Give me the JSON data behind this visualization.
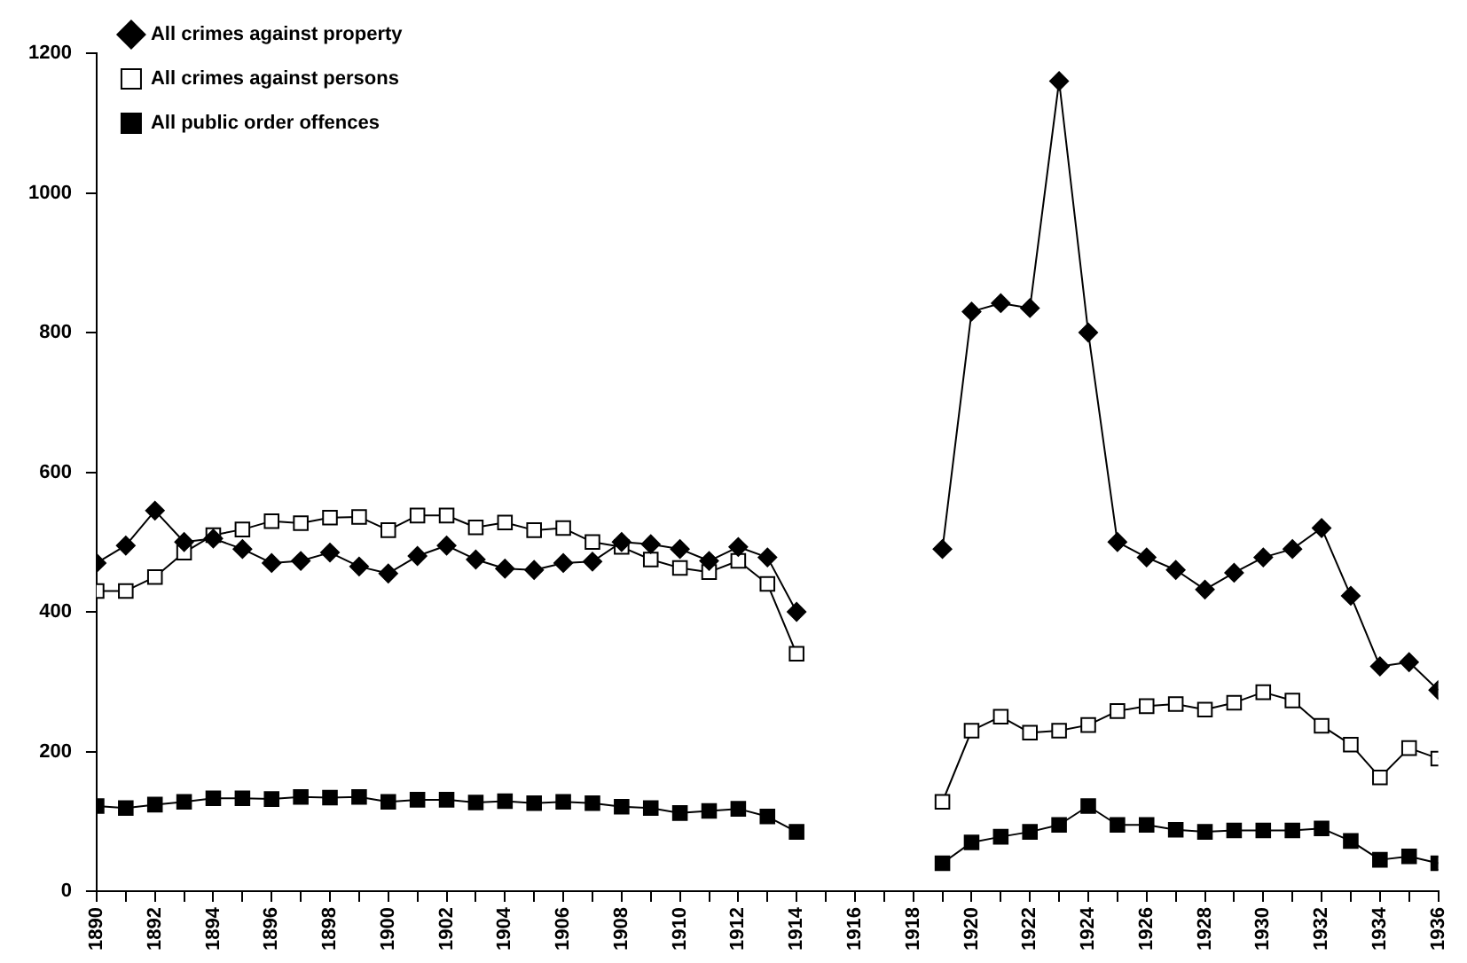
{
  "chart_data": {
    "type": "line",
    "x": [
      1890,
      1891,
      1892,
      1893,
      1894,
      1895,
      1896,
      1897,
      1898,
      1899,
      1900,
      1901,
      1902,
      1903,
      1904,
      1905,
      1906,
      1907,
      1908,
      1909,
      1910,
      1911,
      1912,
      1913,
      1914,
      1915,
      1916,
      1917,
      1918,
      1919,
      1920,
      1921,
      1922,
      1923,
      1924,
      1925,
      1926,
      1927,
      1928,
      1929,
      1930,
      1931,
      1932,
      1933,
      1934,
      1935,
      1936
    ],
    "series": [
      {
        "name": "All public order offences",
        "color": "#000000",
        "marker": "square",
        "values": [
          122,
          119,
          124,
          128,
          133,
          133,
          132,
          135,
          134,
          135,
          128,
          131,
          131,
          127,
          129,
          126,
          128,
          126,
          121,
          119,
          112,
          115,
          118,
          107,
          85,
          null,
          null,
          null,
          null,
          40,
          70,
          78,
          85,
          95,
          122,
          95,
          95,
          88,
          85,
          87,
          87,
          87,
          90,
          72,
          45,
          50,
          40
        ]
      },
      {
        "name": "All crimes against persons",
        "color": "#ffffff",
        "marker": "square",
        "values": [
          430,
          430,
          450,
          485,
          510,
          518,
          530,
          527,
          535,
          536,
          517,
          538,
          538,
          521,
          528,
          517,
          520,
          500,
          493,
          475,
          463,
          457,
          473,
          440,
          340,
          null,
          null,
          null,
          null,
          128,
          230,
          250,
          227,
          230,
          238,
          258,
          265,
          268,
          260,
          270,
          285,
          273,
          237,
          210,
          163,
          205,
          190
        ]
      },
      {
        "name": "All crimes against property",
        "color": "#000000",
        "marker": "diamond",
        "values": [
          470,
          495,
          545,
          500,
          505,
          490,
          470,
          473,
          485,
          465,
          455,
          480,
          495,
          475,
          462,
          460,
          470,
          472,
          500,
          497,
          490,
          473,
          493,
          478,
          400,
          null,
          null,
          null,
          null,
          490,
          830,
          842,
          835,
          1160,
          800,
          500,
          478,
          460,
          432,
          456,
          478,
          490,
          520,
          423,
          322,
          328,
          288
        ]
      }
    ],
    "xlim": [
      1890,
      1936
    ],
    "xticks": [
      1890,
      {
        "value": 1891,
        "label": null
      },
      1892,
      {
        "value": 1893,
        "label": null
      },
      1894,
      {
        "value": 1895,
        "label": null
      },
      1896,
      {
        "value": 1897,
        "label": null
      },
      1898,
      {
        "value": 1899,
        "label": null
      },
      1900,
      {
        "value": 1901,
        "label": null
      },
      1902,
      {
        "value": 1903,
        "label": null
      },
      1904,
      {
        "value": 1905,
        "label": null
      },
      1906,
      {
        "value": 1907,
        "label": null
      },
      1908,
      {
        "value": 1909,
        "label": null
      },
      1910,
      {
        "value": 1911,
        "label": null
      },
      1912,
      {
        "value": 1913,
        "label": null
      },
      1914,
      {
        "value": 1915,
        "label": null
      },
      1916,
      {
        "value": 1917,
        "label": null
      },
      1918,
      {
        "value": 1919,
        "label": null
      },
      1920,
      {
        "value": 1921,
        "label": null
      },
      1922,
      {
        "value": 1923,
        "label": null
      },
      1924,
      {
        "value": 1925,
        "label": null
      },
      1926,
      {
        "value": 1927,
        "label": null
      },
      1928,
      {
        "value": 1929,
        "label": null
      },
      1930,
      {
        "value": 1931,
        "label": null
      },
      1932,
      {
        "value": 1933,
        "label": null
      },
      1934,
      {
        "value": 1935,
        "label": null
      },
      1936
    ],
    "ylim": [
      0,
      1200
    ],
    "yticks": [
      0,
      200,
      400,
      600,
      800,
      1000,
      1200
    ],
    "grid": false,
    "legend": "top left",
    "line_style": "solid"
  }
}
